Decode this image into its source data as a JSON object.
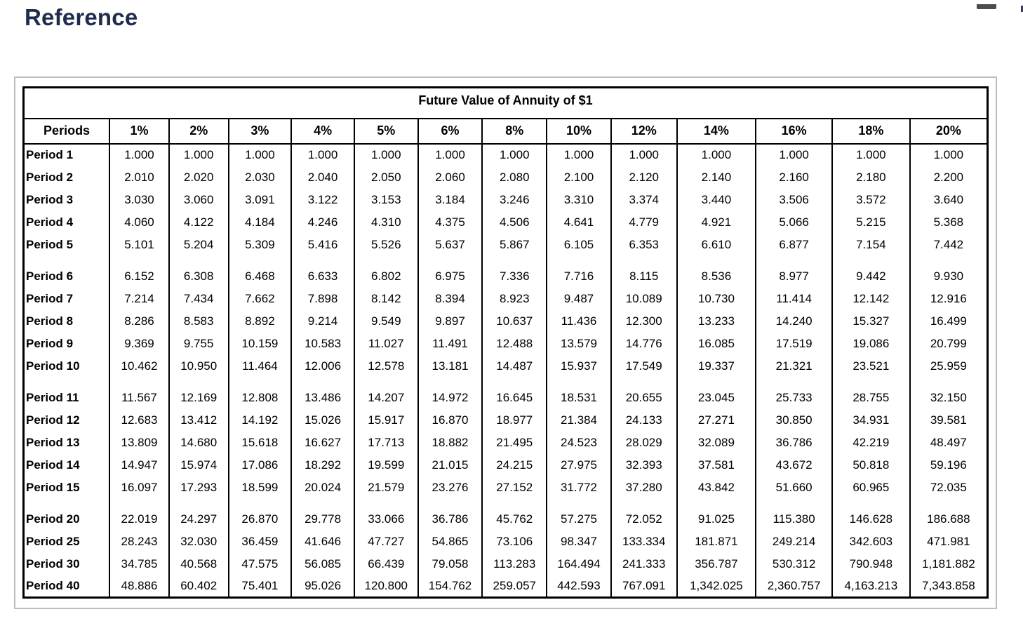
{
  "page": {
    "heading": "Reference"
  },
  "chart_data": {
    "type": "table",
    "title": "Future Value of Annuity of $1",
    "columns": [
      "Periods",
      "1%",
      "2%",
      "3%",
      "4%",
      "5%",
      "6%",
      "8%",
      "10%",
      "12%",
      "14%",
      "16%",
      "18%",
      "20%"
    ],
    "row_groups": [
      {
        "rows": [
          {
            "label": "Period 1",
            "values": [
              "1.000",
              "1.000",
              "1.000",
              "1.000",
              "1.000",
              "1.000",
              "1.000",
              "1.000",
              "1.000",
              "1.000",
              "1.000",
              "1.000",
              "1.000"
            ]
          },
          {
            "label": "Period 2",
            "values": [
              "2.010",
              "2.020",
              "2.030",
              "2.040",
              "2.050",
              "2.060",
              "2.080",
              "2.100",
              "2.120",
              "2.140",
              "2.160",
              "2.180",
              "2.200"
            ]
          },
          {
            "label": "Period 3",
            "values": [
              "3.030",
              "3.060",
              "3.091",
              "3.122",
              "3.153",
              "3.184",
              "3.246",
              "3.310",
              "3.374",
              "3.440",
              "3.506",
              "3.572",
              "3.640"
            ]
          },
          {
            "label": "Period 4",
            "values": [
              "4.060",
              "4.122",
              "4.184",
              "4.246",
              "4.310",
              "4.375",
              "4.506",
              "4.641",
              "4.779",
              "4.921",
              "5.066",
              "5.215",
              "5.368"
            ]
          },
          {
            "label": "Period 5",
            "values": [
              "5.101",
              "5.204",
              "5.309",
              "5.416",
              "5.526",
              "5.637",
              "5.867",
              "6.105",
              "6.353",
              "6.610",
              "6.877",
              "7.154",
              "7.442"
            ]
          }
        ]
      },
      {
        "rows": [
          {
            "label": "Period 6",
            "values": [
              "6.152",
              "6.308",
              "6.468",
              "6.633",
              "6.802",
              "6.975",
              "7.336",
              "7.716",
              "8.115",
              "8.536",
              "8.977",
              "9.442",
              "9.930"
            ]
          },
          {
            "label": "Period 7",
            "values": [
              "7.214",
              "7.434",
              "7.662",
              "7.898",
              "8.142",
              "8.394",
              "8.923",
              "9.487",
              "10.089",
              "10.730",
              "11.414",
              "12.142",
              "12.916"
            ]
          },
          {
            "label": "Period 8",
            "values": [
              "8.286",
              "8.583",
              "8.892",
              "9.214",
              "9.549",
              "9.897",
              "10.637",
              "11.436",
              "12.300",
              "13.233",
              "14.240",
              "15.327",
              "16.499"
            ]
          },
          {
            "label": "Period 9",
            "values": [
              "9.369",
              "9.755",
              "10.159",
              "10.583",
              "11.027",
              "11.491",
              "12.488",
              "13.579",
              "14.776",
              "16.085",
              "17.519",
              "19.086",
              "20.799"
            ]
          },
          {
            "label": "Period 10",
            "values": [
              "10.462",
              "10.950",
              "11.464",
              "12.006",
              "12.578",
              "13.181",
              "14.487",
              "15.937",
              "17.549",
              "19.337",
              "21.321",
              "23.521",
              "25.959"
            ]
          }
        ]
      },
      {
        "rows": [
          {
            "label": "Period 11",
            "values": [
              "11.567",
              "12.169",
              "12.808",
              "13.486",
              "14.207",
              "14.972",
              "16.645",
              "18.531",
              "20.655",
              "23.045",
              "25.733",
              "28.755",
              "32.150"
            ]
          },
          {
            "label": "Period 12",
            "values": [
              "12.683",
              "13.412",
              "14.192",
              "15.026",
              "15.917",
              "16.870",
              "18.977",
              "21.384",
              "24.133",
              "27.271",
              "30.850",
              "34.931",
              "39.581"
            ]
          },
          {
            "label": "Period 13",
            "values": [
              "13.809",
              "14.680",
              "15.618",
              "16.627",
              "17.713",
              "18.882",
              "21.495",
              "24.523",
              "28.029",
              "32.089",
              "36.786",
              "42.219",
              "48.497"
            ]
          },
          {
            "label": "Period 14",
            "values": [
              "14.947",
              "15.974",
              "17.086",
              "18.292",
              "19.599",
              "21.015",
              "24.215",
              "27.975",
              "32.393",
              "37.581",
              "43.672",
              "50.818",
              "59.196"
            ]
          },
          {
            "label": "Period 15",
            "values": [
              "16.097",
              "17.293",
              "18.599",
              "20.024",
              "21.579",
              "23.276",
              "27.152",
              "31.772",
              "37.280",
              "43.842",
              "51.660",
              "60.965",
              "72.035"
            ]
          }
        ]
      },
      {
        "rows": [
          {
            "label": "Period 20",
            "values": [
              "22.019",
              "24.297",
              "26.870",
              "29.778",
              "33.066",
              "36.786",
              "45.762",
              "57.275",
              "72.052",
              "91.025",
              "115.380",
              "146.628",
              "186.688"
            ]
          },
          {
            "label": "Period 25",
            "values": [
              "28.243",
              "32.030",
              "36.459",
              "41.646",
              "47.727",
              "54.865",
              "73.106",
              "98.347",
              "133.334",
              "181.871",
              "249.214",
              "342.603",
              "471.981"
            ]
          },
          {
            "label": "Period 30",
            "values": [
              "34.785",
              "40.568",
              "47.575",
              "56.085",
              "66.439",
              "79.058",
              "113.283",
              "164.494",
              "241.333",
              "356.787",
              "530.312",
              "790.948",
              "1,181.882"
            ]
          },
          {
            "label": "Period 40",
            "values": [
              "48.886",
              "60.402",
              "75.401",
              "95.026",
              "120.800",
              "154.762",
              "259.057",
              "442.593",
              "767.091",
              "1,342.025",
              "2,360.757",
              "4,163.213",
              "7,343.858"
            ]
          }
        ]
      }
    ]
  },
  "colors": {
    "heading_text": "#1f2c4f",
    "table_border": "#000000",
    "frame_border": "#bdbdbd"
  }
}
